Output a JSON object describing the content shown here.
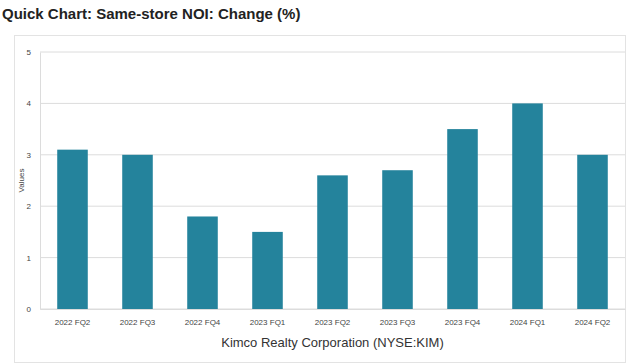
{
  "chart_data": {
    "type": "bar",
    "title": "Quick Chart: Same-store NOI: Change (%)",
    "y_label": "Values",
    "x_label": "Kimco Realty Corporation (NYSE:KIM)",
    "categories": [
      "2022 FQ2",
      "2022 FQ3",
      "2022 FQ4",
      "2023 FQ1",
      "2023 FQ2",
      "2023 FQ3",
      "2023 FQ4",
      "2024 FQ1",
      "2024 FQ2"
    ],
    "values": [
      3.1,
      3.0,
      1.8,
      1.5,
      2.6,
      2.7,
      3.5,
      4.0,
      3.0
    ],
    "color": "#24839c",
    "ylim": [
      0,
      5
    ],
    "yticks": [
      0,
      1,
      2,
      3,
      4,
      5
    ],
    "grid": true
  }
}
